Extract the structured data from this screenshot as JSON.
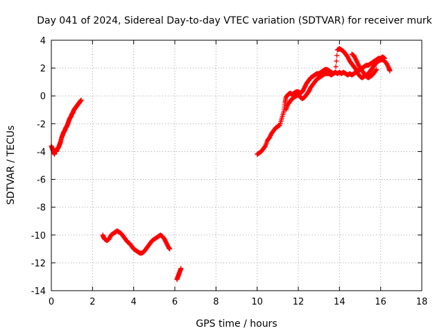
{
  "chart_data": {
    "type": "scatter",
    "title": "Day 041 of 2024, Sidereal Day-to-day VTEC variation (SDTVAR) for receiver murk",
    "xlabel": "GPS time / hours",
    "ylabel": "SDTVAR / TECUs",
    "xlim": [
      0,
      18
    ],
    "ylim": [
      -14,
      4
    ],
    "xticks": [
      0,
      2,
      4,
      6,
      8,
      10,
      12,
      14,
      16,
      18
    ],
    "yticks": [
      -14,
      -12,
      -10,
      -8,
      -6,
      -4,
      -2,
      0,
      2,
      4
    ],
    "grid": true,
    "marker": "+",
    "color": "#ff0000",
    "series": [
      {
        "name": "SDTVAR",
        "segments": [
          [
            [
              0.0,
              -3.6
            ],
            [
              0.05,
              -3.8
            ],
            [
              0.1,
              -4.0
            ],
            [
              0.15,
              -4.2
            ],
            [
              0.2,
              -3.9
            ],
            [
              0.25,
              -4.0
            ],
            [
              0.3,
              -3.8
            ],
            [
              0.35,
              -3.7
            ],
            [
              0.4,
              -3.5
            ],
            [
              0.45,
              -3.3
            ],
            [
              0.5,
              -3.0
            ],
            [
              0.55,
              -2.8
            ],
            [
              0.6,
              -2.6
            ],
            [
              0.65,
              -2.5
            ],
            [
              0.7,
              -2.3
            ],
            [
              0.75,
              -2.2
            ],
            [
              0.8,
              -2.0
            ],
            [
              0.85,
              -1.8
            ],
            [
              0.9,
              -1.6
            ],
            [
              0.95,
              -1.5
            ],
            [
              1.0,
              -1.3
            ],
            [
              1.05,
              -1.2
            ],
            [
              1.1,
              -1.0
            ],
            [
              1.15,
              -0.9
            ],
            [
              1.2,
              -0.8
            ],
            [
              1.25,
              -0.7
            ],
            [
              1.3,
              -0.6
            ],
            [
              1.35,
              -0.5
            ],
            [
              1.4,
              -0.4
            ],
            [
              1.45,
              -0.3
            ]
          ],
          [
            [
              2.5,
              -10.0
            ],
            [
              2.55,
              -10.2
            ],
            [
              2.6,
              -10.3
            ],
            [
              2.7,
              -10.4
            ],
            [
              2.8,
              -10.3
            ],
            [
              2.9,
              -10.0
            ],
            [
              3.0,
              -9.9
            ],
            [
              3.1,
              -9.8
            ],
            [
              3.2,
              -9.7
            ],
            [
              3.3,
              -9.8
            ],
            [
              3.4,
              -9.9
            ],
            [
              3.5,
              -10.1
            ],
            [
              3.6,
              -10.3
            ],
            [
              3.7,
              -10.5
            ],
            [
              3.8,
              -10.6
            ],
            [
              3.9,
              -10.8
            ],
            [
              4.0,
              -11.0
            ],
            [
              4.1,
              -11.1
            ],
            [
              4.2,
              -11.2
            ],
            [
              4.3,
              -11.3
            ],
            [
              4.4,
              -11.3
            ],
            [
              4.5,
              -11.2
            ],
            [
              4.6,
              -11.0
            ],
            [
              4.7,
              -10.8
            ],
            [
              4.8,
              -10.6
            ],
            [
              4.9,
              -10.4
            ],
            [
              5.0,
              -10.3
            ],
            [
              5.1,
              -10.2
            ],
            [
              5.2,
              -10.1
            ],
            [
              5.3,
              -10.0
            ],
            [
              5.4,
              -10.1
            ],
            [
              5.5,
              -10.3
            ],
            [
              5.6,
              -10.6
            ],
            [
              5.7,
              -10.9
            ],
            [
              5.75,
              -11.0
            ]
          ],
          [
            [
              6.1,
              -13.2
            ],
            [
              6.15,
              -13.0
            ],
            [
              6.2,
              -12.8
            ],
            [
              6.25,
              -12.6
            ],
            [
              6.3,
              -12.4
            ]
          ],
          [
            [
              10.0,
              -4.2
            ],
            [
              10.1,
              -4.1
            ],
            [
              10.2,
              -4.0
            ],
            [
              10.3,
              -3.8
            ],
            [
              10.4,
              -3.6
            ],
            [
              10.5,
              -3.2
            ],
            [
              10.6,
              -3.0
            ],
            [
              10.7,
              -2.7
            ],
            [
              10.8,
              -2.5
            ],
            [
              10.9,
              -2.3
            ],
            [
              11.0,
              -2.2
            ],
            [
              11.1,
              -2.1
            ],
            [
              11.2,
              -1.6
            ],
            [
              11.3,
              -1.1
            ],
            [
              11.35,
              -0.5
            ],
            [
              11.4,
              -0.1
            ],
            [
              11.5,
              0.1
            ],
            [
              11.6,
              0.2
            ],
            [
              11.7,
              0.1
            ],
            [
              11.8,
              0.2
            ],
            [
              11.9,
              0.3
            ],
            [
              12.0,
              0.3
            ],
            [
              12.1,
              0.2
            ],
            [
              12.2,
              0.3
            ],
            [
              12.3,
              0.6
            ],
            [
              12.4,
              0.9
            ],
            [
              12.5,
              1.1
            ],
            [
              12.6,
              1.3
            ],
            [
              12.7,
              1.4
            ],
            [
              12.8,
              1.5
            ],
            [
              12.9,
              1.6
            ],
            [
              13.0,
              1.6
            ],
            [
              13.1,
              1.7
            ],
            [
              13.2,
              1.8
            ],
            [
              13.3,
              1.9
            ],
            [
              13.4,
              1.9
            ],
            [
              13.5,
              1.8
            ],
            [
              13.6,
              1.7
            ],
            [
              13.7,
              1.6
            ],
            [
              13.8,
              1.7
            ],
            [
              13.9,
              3.3
            ],
            [
              14.0,
              3.4
            ],
            [
              14.1,
              3.3
            ],
            [
              14.2,
              3.2
            ],
            [
              14.3,
              3.0
            ],
            [
              14.4,
              2.8
            ],
            [
              14.5,
              2.5
            ],
            [
              14.6,
              2.3
            ],
            [
              14.7,
              2.1
            ],
            [
              14.8,
              1.9
            ],
            [
              14.9,
              1.6
            ],
            [
              15.0,
              1.4
            ],
            [
              15.1,
              1.3
            ],
            [
              15.2,
              1.4
            ],
            [
              15.3,
              1.5
            ],
            [
              15.4,
              1.6
            ],
            [
              15.5,
              1.8
            ],
            [
              15.6,
              2.0
            ],
            [
              15.7,
              2.2
            ],
            [
              15.8,
              2.4
            ],
            [
              15.9,
              2.5
            ],
            [
              16.0,
              2.6
            ],
            [
              16.1,
              2.6
            ],
            [
              16.2,
              2.5
            ],
            [
              16.3,
              2.3
            ],
            [
              16.4,
              2.0
            ],
            [
              16.45,
              1.8
            ]
          ],
          [
            [
              11.4,
              -1.0
            ],
            [
              11.5,
              -0.6
            ],
            [
              11.6,
              -0.4
            ],
            [
              11.7,
              -0.2
            ],
            [
              11.8,
              -0.1
            ],
            [
              11.9,
              0.0
            ],
            [
              12.0,
              0.1
            ],
            [
              12.1,
              -0.1
            ],
            [
              12.2,
              -0.2
            ],
            [
              12.3,
              -0.1
            ],
            [
              12.4,
              0.1
            ],
            [
              12.5,
              0.3
            ],
            [
              12.6,
              0.6
            ],
            [
              12.7,
              0.8
            ],
            [
              12.8,
              1.0
            ],
            [
              12.9,
              1.2
            ],
            [
              13.0,
              1.3
            ],
            [
              13.1,
              1.4
            ],
            [
              13.2,
              1.5
            ],
            [
              13.3,
              1.6
            ],
            [
              13.4,
              1.6
            ],
            [
              13.5,
              1.6
            ],
            [
              13.6,
              1.5
            ],
            [
              13.7,
              1.6
            ],
            [
              13.8,
              1.7
            ],
            [
              13.9,
              1.6
            ],
            [
              14.0,
              1.7
            ],
            [
              14.1,
              1.6
            ],
            [
              14.2,
              1.7
            ],
            [
              14.3,
              1.6
            ],
            [
              14.4,
              1.5
            ],
            [
              14.5,
              1.6
            ],
            [
              14.6,
              1.5
            ],
            [
              14.7,
              1.6
            ],
            [
              14.8,
              1.7
            ],
            [
              14.9,
              1.8
            ],
            [
              15.0,
              1.9
            ],
            [
              15.1,
              2.0
            ],
            [
              15.2,
              2.1
            ],
            [
              15.3,
              2.2
            ],
            [
              15.4,
              2.2
            ],
            [
              15.5,
              2.3
            ],
            [
              15.6,
              2.4
            ],
            [
              15.7,
              2.5
            ],
            [
              15.8,
              2.6
            ],
            [
              15.9,
              2.7
            ],
            [
              16.0,
              2.7
            ],
            [
              16.1,
              2.8
            ],
            [
              16.2,
              2.7
            ]
          ],
          [
            [
              14.6,
              3.0
            ],
            [
              14.7,
              2.9
            ],
            [
              14.8,
              2.6
            ],
            [
              14.9,
              2.3
            ],
            [
              15.0,
              2.0
            ],
            [
              15.1,
              1.8
            ],
            [
              15.2,
              1.6
            ],
            [
              15.3,
              1.4
            ],
            [
              15.4,
              1.3
            ],
            [
              15.5,
              1.4
            ],
            [
              15.6,
              1.5
            ],
            [
              15.7,
              1.7
            ],
            [
              15.8,
              1.9
            ]
          ]
        ]
      }
    ]
  }
}
